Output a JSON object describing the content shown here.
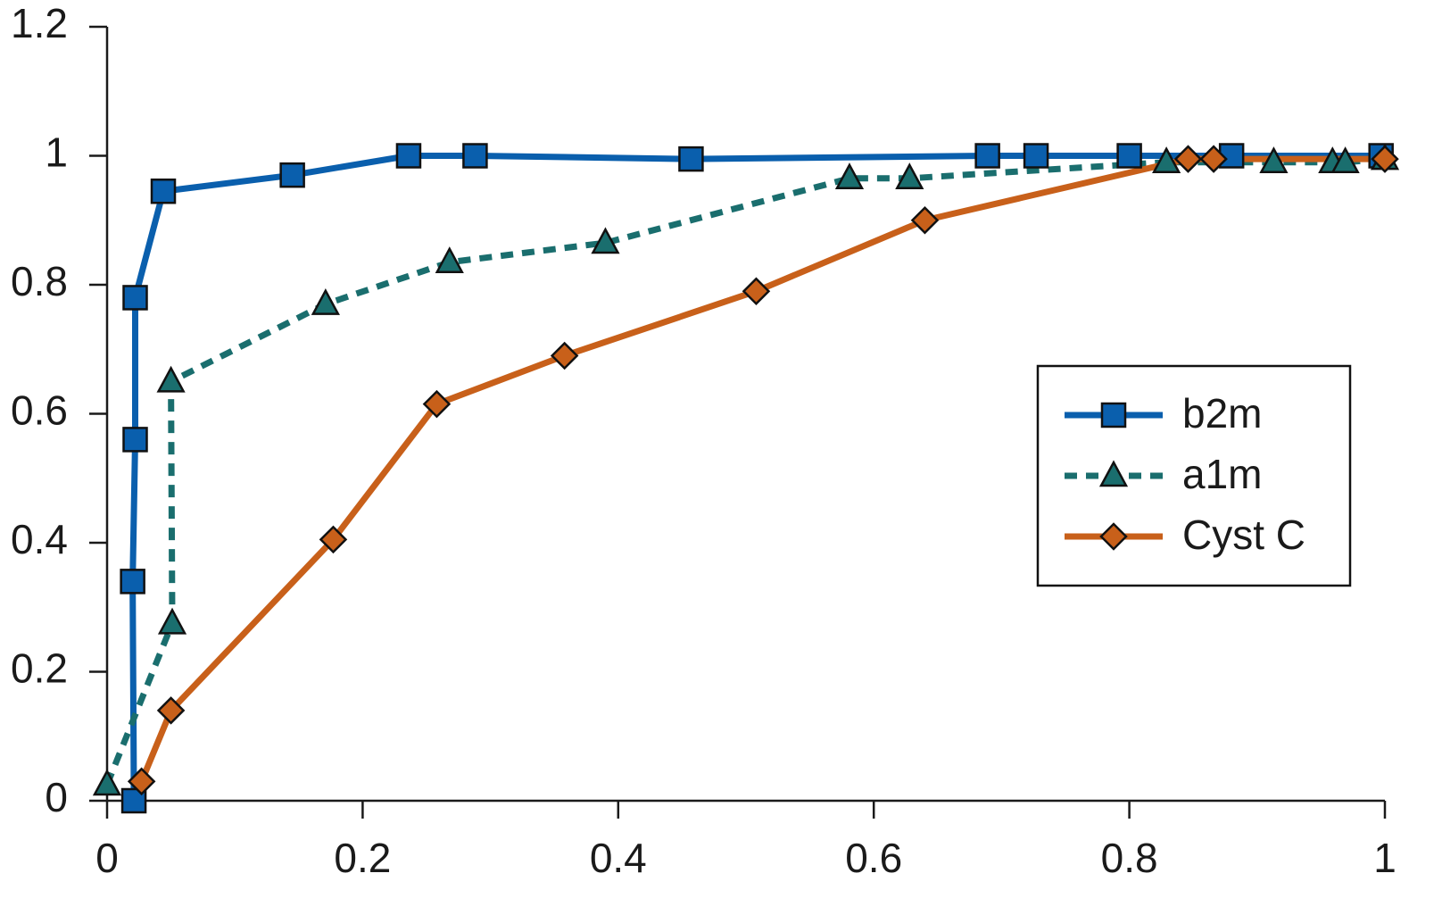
{
  "chart_data": {
    "type": "line",
    "xlim": [
      0,
      1
    ],
    "ylim": [
      0,
      1.2
    ],
    "xticks": [
      0,
      0.2,
      0.4,
      0.6,
      0.8,
      1
    ],
    "yticks": [
      0,
      0.2,
      0.4,
      0.6,
      0.8,
      1,
      1.2
    ],
    "legend": "right",
    "series": [
      {
        "name": "b2m",
        "color": "#0a5fad",
        "marker": "square",
        "dash": "solid",
        "x": [
          0.021,
          0.02,
          0.022,
          0.022,
          0.044,
          0.145,
          0.236,
          0.288,
          0.457,
          0.689,
          0.727,
          0.8,
          0.88,
          0.997
        ],
        "values": [
          0,
          0.34,
          0.56,
          0.78,
          0.945,
          0.97,
          1.0,
          1.0,
          0.995,
          1.0,
          1.0,
          1.0,
          1.0,
          1.0
        ]
      },
      {
        "name": "a1m",
        "color": "#1a6e6e",
        "marker": "triangle",
        "dash": "dotted",
        "x": [
          0,
          0.051,
          0.05,
          0.171,
          0.268,
          0.39,
          0.581,
          0.628,
          0.829,
          0.913,
          0.959,
          0.969,
          1
        ],
        "values": [
          0.025,
          0.275,
          0.65,
          0.77,
          0.835,
          0.865,
          0.965,
          0.965,
          0.99,
          0.99,
          0.99,
          0.99,
          0.995
        ]
      },
      {
        "name": "Cyst C",
        "color": "#c8601a",
        "marker": "diamond",
        "dash": "solid",
        "x": [
          0.027,
          0.05,
          0.177,
          0.258,
          0.358,
          0.508,
          0.64,
          0.846,
          0.866,
          1
        ],
        "values": [
          0.03,
          0.14,
          0.405,
          0.615,
          0.69,
          0.79,
          0.9,
          0.995,
          0.995,
          0.995
        ]
      }
    ]
  }
}
